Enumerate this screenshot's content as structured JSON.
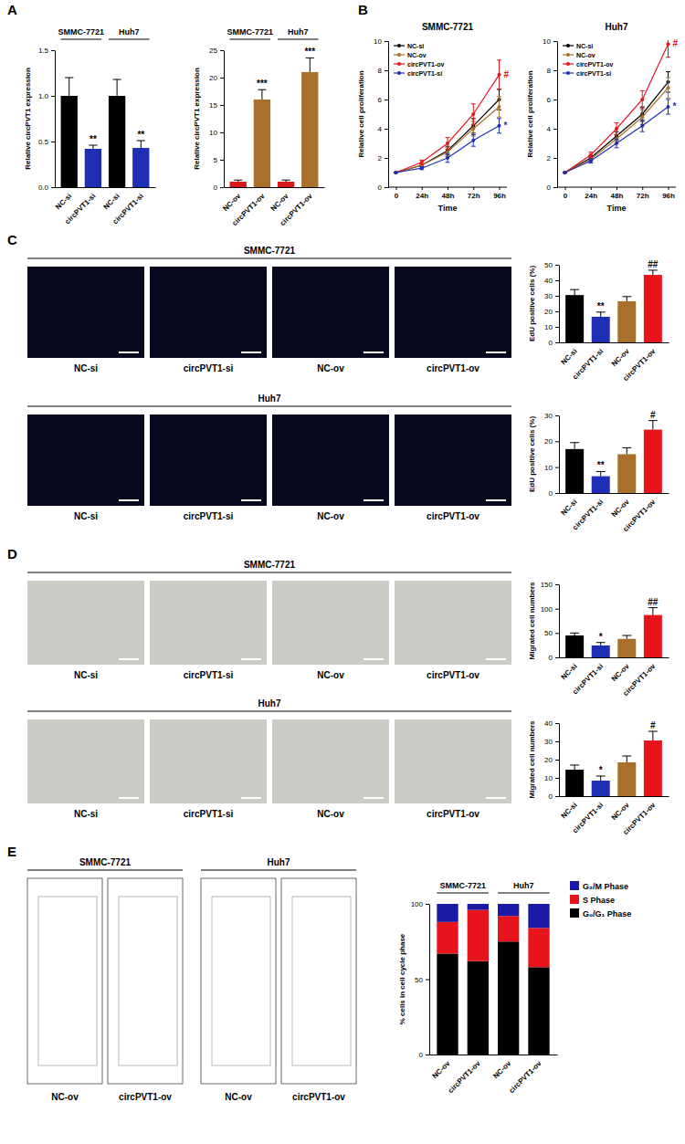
{
  "chart_data": [
    {
      "type": "bar",
      "ylabel": "Relative circPVT1 expression",
      "groups": [
        "SMMC-7721",
        "Huh7"
      ],
      "categories": [
        "NC-si",
        "circPVT1-si",
        "NC-si",
        "circPVT1-si"
      ],
      "values": [
        1.0,
        0.42,
        1.0,
        0.43
      ],
      "errors": [
        0.2,
        0.04,
        0.18,
        0.08
      ],
      "significance": [
        null,
        "**",
        null,
        "**"
      ],
      "colors": [
        "#000000",
        "#1f2fb5",
        "#000000",
        "#1f2fb5"
      ],
      "ylim": [
        0,
        1.5
      ],
      "yticks": [
        {
          "value": 0,
          "label": "0.0"
        },
        0.5,
        {
          "value": 1,
          "label": "1.0"
        },
        1.5
      ]
    },
    {
      "type": "bar",
      "ylabel": "Relative circPVT1 expression",
      "groups": [
        "SMMC-7721",
        "Huh7"
      ],
      "categories": [
        "NC-ov",
        "circPVT1-ov",
        "NC-ov",
        "circPVT1-ov"
      ],
      "values": [
        1,
        16,
        1,
        21
      ],
      "errors": [
        0.3,
        1.8,
        0.3,
        2.6
      ],
      "significance": [
        null,
        "***",
        null,
        "***"
      ],
      "colors": [
        "#d7191c",
        "#a8702a",
        "#d7191c",
        "#a8702a"
      ],
      "ylim": [
        0,
        25
      ],
      "yticks": [
        0,
        5,
        10,
        15,
        20,
        25
      ]
    },
    {
      "type": "line",
      "title": "SMMC-7721",
      "xlabel": "Time",
      "ylabel": "Relative cell proliferation",
      "categories": [
        "0",
        "24h",
        "48h",
        "72h",
        "96h"
      ],
      "series": [
        {
          "name": "NC-si",
          "color": "#000000",
          "values": [
            1,
            1.5,
            2.5,
            4.2,
            6.0
          ],
          "errors": [
            0,
            0.1,
            0.3,
            0.5,
            0.7
          ]
        },
        {
          "name": "NC-ov",
          "color": "#a8702a",
          "values": [
            1,
            1.5,
            2.4,
            4.0,
            5.5
          ],
          "errors": [
            0,
            0.1,
            0.3,
            0.5,
            0.7
          ]
        },
        {
          "name": "circPVT1-ov",
          "color": "#e8141c",
          "values": [
            1,
            1.7,
            3.0,
            5.0,
            7.7
          ],
          "errors": [
            0,
            0.15,
            0.4,
            0.7,
            1.0
          ],
          "significance": "#"
        },
        {
          "name": "circPVT1-si",
          "color": "#1f2fb5",
          "values": [
            1,
            1.3,
            2.0,
            3.2,
            4.2
          ],
          "errors": [
            0,
            0.1,
            0.3,
            0.4,
            0.5
          ],
          "significance": "*"
        }
      ],
      "ylim": [
        0,
        10
      ],
      "yticks": [
        0,
        2,
        4,
        6,
        8,
        10
      ],
      "legend": "upper left",
      "marker": "circle"
    },
    {
      "type": "line",
      "title": "Huh7",
      "xlabel": "Time",
      "ylabel": "Relative cell proliferation",
      "categories": [
        "0",
        "24h",
        "48h",
        "72h",
        "96h"
      ],
      "series": [
        {
          "name": "NC-si",
          "color": "#000000",
          "values": [
            1,
            2.0,
            3.5,
            5.0,
            7.2
          ],
          "errors": [
            0,
            0.15,
            0.3,
            0.5,
            0.7
          ]
        },
        {
          "name": "NC-ov",
          "color": "#a8702a",
          "values": [
            1,
            1.9,
            3.3,
            4.8,
            6.8
          ],
          "errors": [
            0,
            0.15,
            0.3,
            0.5,
            0.7
          ]
        },
        {
          "name": "circPVT1-ov",
          "color": "#e8141c",
          "values": [
            1,
            2.2,
            4.0,
            6.0,
            9.8
          ],
          "errors": [
            0,
            0.2,
            0.4,
            0.6,
            0.9
          ],
          "significance": "#"
        },
        {
          "name": "circPVT1-si",
          "color": "#1f2fb5",
          "values": [
            1,
            1.8,
            3.0,
            4.2,
            5.5
          ],
          "errors": [
            0,
            0.15,
            0.3,
            0.4,
            0.5
          ],
          "significance": "*"
        }
      ],
      "ylim": [
        0,
        10
      ],
      "yticks": [
        0,
        2,
        4,
        6,
        8,
        10
      ],
      "legend": "upper left",
      "marker": "circle"
    },
    {
      "type": "bar",
      "ylabel": "EdU positive cells (%)",
      "categories": [
        "NC-si",
        "circPVT1-si",
        "NC-ov",
        "circPVT1-ov"
      ],
      "values": [
        30.5,
        16.5,
        26.5,
        43.5
      ],
      "errors": [
        3.5,
        3,
        3,
        3
      ],
      "significance": [
        null,
        "**",
        null,
        "##"
      ],
      "colors": [
        "#000000",
        "#1f2fb5",
        "#a8702a",
        "#e8141c"
      ],
      "ylim": [
        0,
        50
      ],
      "yticks": [
        0,
        10,
        20,
        30,
        40,
        50
      ]
    },
    {
      "type": "bar",
      "ylabel": "EdU positive cells (%)",
      "categories": [
        "NC-si",
        "circPVT1-si",
        "NC-ov",
        "circPVT1-ov"
      ],
      "values": [
        17,
        6.5,
        15,
        24.5
      ],
      "errors": [
        2.5,
        1.8,
        2.5,
        3.5
      ],
      "significance": [
        null,
        "**",
        null,
        "#"
      ],
      "colors": [
        "#000000",
        "#1f2fb5",
        "#a8702a",
        "#e8141c"
      ],
      "ylim": [
        0,
        30
      ],
      "yticks": [
        0,
        10,
        20,
        30
      ]
    },
    {
      "type": "bar",
      "ylabel": "Migrated cell numbers",
      "categories": [
        "NC-si",
        "circPVT1-si",
        "NC-ov",
        "circPVT1-ov"
      ],
      "values": [
        45,
        24.5,
        38,
        87
      ],
      "errors": [
        5,
        6,
        7,
        15
      ],
      "significance": [
        null,
        "*",
        null,
        "##"
      ],
      "colors": [
        "#000000",
        "#1f2fb5",
        "#a8702a",
        "#e8141c"
      ],
      "ylim": [
        0,
        150
      ],
      "yticks": [
        0,
        50,
        100,
        150
      ]
    },
    {
      "type": "bar",
      "ylabel": "Migrated cell numbers",
      "categories": [
        "NC-si",
        "circPVT1-si",
        "NC-ov",
        "circPVT1-ov"
      ],
      "values": [
        14.5,
        8.5,
        18.5,
        30.5
      ],
      "errors": [
        2.5,
        2.5,
        3.5,
        5
      ],
      "significance": [
        null,
        "*",
        null,
        "#"
      ],
      "colors": [
        "#000000",
        "#1f2fb5",
        "#a8702a",
        "#e8141c"
      ],
      "ylim": [
        0,
        40
      ],
      "yticks": [
        0,
        10,
        20,
        30,
        40
      ]
    },
    {
      "type": "bar",
      "stacked": true,
      "ylabel": "% cells in cell cycle phase",
      "groups": [
        "SMMC-7721",
        "Huh7"
      ],
      "categories": [
        "NC-ov",
        "circPVT1-ov",
        "NC-ov",
        "circPVT1-ov"
      ],
      "series": [
        {
          "name": "G₀/G₁ Phase",
          "color": "#000000",
          "values": [
            67,
            62,
            75,
            58
          ]
        },
        {
          "name": "S Phase",
          "color": "#e8141c",
          "values": [
            21,
            34,
            17,
            26
          ]
        },
        {
          "name": "G₂/M Phase",
          "color": "#1a1aa6",
          "values": [
            12,
            4,
            8,
            16
          ]
        }
      ],
      "ylim": [
        0,
        100
      ],
      "yticks": [
        0,
        50,
        100
      ],
      "legend": "right"
    }
  ],
  "figure": {
    "panel_labels": [
      "A",
      "B",
      "C",
      "D",
      "E"
    ],
    "image_panels": [
      {
        "title": "SMMC-7721",
        "captions": [
          "NC-si",
          "circPVT1-si",
          "NC-ov",
          "circPVT1-ov"
        ]
      },
      {
        "title": "Huh7",
        "captions": [
          "NC-si",
          "circPVT1-si",
          "NC-ov",
          "circPVT1-ov"
        ]
      },
      {
        "title": "SMMC-7721",
        "captions": [
          "NC-si",
          "circPVT1-si",
          "NC-ov",
          "circPVT1-ov"
        ]
      },
      {
        "title": "Huh7",
        "captions": [
          "NC-si",
          "circPVT1-si",
          "NC-ov",
          "circPVT1-ov"
        ]
      }
    ],
    "flow_panels": {
      "titles": [
        "SMMC-7721",
        "Huh7"
      ],
      "captions": [
        "NC-ov",
        "circPVT1-ov",
        "NC-ov",
        "circPVT1-ov"
      ]
    }
  }
}
